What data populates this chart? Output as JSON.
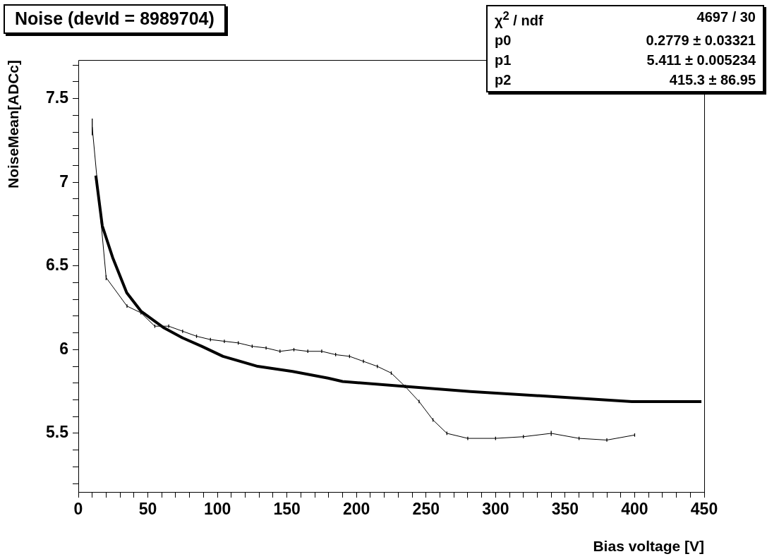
{
  "chart_data": {
    "type": "line",
    "title": "Noise (devId = 8989704)",
    "xlabel": "Bias voltage [V]",
    "ylabel": "NoiseMean[ADCc]",
    "xlim": [
      0,
      450
    ],
    "ylim": [
      5.15,
      7.73
    ],
    "xticks": [
      0,
      {
        "value": 10,
        "label": null
      },
      {
        "value": 20,
        "label": null
      },
      {
        "value": 30,
        "label": null
      },
      {
        "value": 40,
        "label": null
      },
      50,
      {
        "value": 60,
        "label": null
      },
      {
        "value": 70,
        "label": null
      },
      {
        "value": 80,
        "label": null
      },
      {
        "value": 90,
        "label": null
      },
      100,
      {
        "value": 110,
        "label": null
      },
      {
        "value": 120,
        "label": null
      },
      {
        "value": 130,
        "label": null
      },
      {
        "value": 140,
        "label": null
      },
      150,
      {
        "value": 160,
        "label": null
      },
      {
        "value": 170,
        "label": null
      },
      {
        "value": 180,
        "label": null
      },
      {
        "value": 190,
        "label": null
      },
      200,
      {
        "value": 210,
        "label": null
      },
      {
        "value": 220,
        "label": null
      },
      {
        "value": 230,
        "label": null
      },
      {
        "value": 240,
        "label": null
      },
      250,
      {
        "value": 260,
        "label": null
      },
      {
        "value": 270,
        "label": null
      },
      {
        "value": 280,
        "label": null
      },
      {
        "value": 290,
        "label": null
      },
      300,
      {
        "value": 310,
        "label": null
      },
      {
        "value": 320,
        "label": null
      },
      {
        "value": 330,
        "label": null
      },
      {
        "value": 340,
        "label": null
      },
      350,
      {
        "value": 360,
        "label": null
      },
      {
        "value": 370,
        "label": null
      },
      {
        "value": 380,
        "label": null
      },
      {
        "value": 390,
        "label": null
      },
      400,
      {
        "value": 410,
        "label": null
      },
      {
        "value": 420,
        "label": null
      },
      {
        "value": 430,
        "label": null
      },
      {
        "value": 440,
        "label": null
      },
      450
    ],
    "yticks": [
      {
        "value": 5.2,
        "label": null
      },
      {
        "value": 5.3,
        "label": null
      },
      {
        "value": 5.4,
        "label": null
      },
      5.5,
      {
        "value": 5.6,
        "label": null
      },
      {
        "value": 5.7,
        "label": null
      },
      {
        "value": 5.8,
        "label": null
      },
      {
        "value": 5.9,
        "label": null
      },
      6,
      {
        "value": 6.1,
        "label": null
      },
      {
        "value": 6.2,
        "label": null
      },
      {
        "value": 6.3,
        "label": null
      },
      {
        "value": 6.4,
        "label": null
      },
      6.5,
      {
        "value": 6.6,
        "label": null
      },
      {
        "value": 6.7,
        "label": null
      },
      {
        "value": 6.8,
        "label": null
      },
      {
        "value": 6.9,
        "label": null
      },
      7,
      {
        "value": 7.1,
        "label": null
      },
      {
        "value": 7.2,
        "label": null
      },
      {
        "value": 7.3,
        "label": null
      },
      {
        "value": 7.4,
        "label": null
      },
      7.5,
      {
        "value": 7.6,
        "label": null
      },
      {
        "value": 7.7,
        "label": null
      }
    ],
    "grid": false,
    "legend": false,
    "annotations": [
      "χ$^{2}$ / ndf",
      "4697 / 30",
      "p0",
      "0.2779 ± 0.03321",
      "p1",
      "5.411 ± 0.005234",
      "p2",
      "415.3 ± 86.95"
    ],
    "series": [
      {
        "color": "#000000",
        "x": [
          10,
          20,
          35,
          45,
          55,
          65,
          75,
          85,
          95,
          105,
          115,
          125,
          135,
          145,
          155,
          165,
          175,
          185,
          195,
          205,
          215,
          225,
          235,
          245,
          255,
          265,
          280,
          300,
          320,
          340,
          360,
          380,
          400
        ],
        "values": [
          7.33,
          6.43,
          6.26,
          6.22,
          6.14,
          6.14,
          6.11,
          6.08,
          6.06,
          6.05,
          6.04,
          6.02,
          6.01,
          5.99,
          6.0,
          5.99,
          5.99,
          5.97,
          5.96,
          5.93,
          5.9,
          5.86,
          5.78,
          5.69,
          5.58,
          5.5,
          5.47,
          5.47,
          5.48,
          5.5,
          5.47,
          5.46,
          5.49
        ],
        "errors": [
          0.05,
          0.015,
          0.01,
          0.01,
          0.01,
          0.01,
          0.01,
          0.01,
          0.01,
          0.01,
          0.01,
          0.01,
          0.01,
          0.01,
          0.01,
          0.01,
          0.01,
          0.01,
          0.01,
          0.01,
          0.01,
          0.01,
          0.01,
          0.01,
          0.01,
          0.01,
          0.01,
          0.01,
          0.01,
          0.015,
          0.01,
          0.01,
          0.01
        ]
      },
      {
        "color": "#000000",
        "x": [
          12.6,
          17.2,
          24.7,
          34.8,
          45,
          61.6,
          75,
          88.7,
          104,
          129,
          154,
          179.6,
          190,
          235,
          282,
          340,
          398,
          448
        ],
        "values": [
          7.04,
          6.74,
          6.55,
          6.34,
          6.23,
          6.13,
          6.07,
          6.02,
          5.96,
          5.9,
          5.87,
          5.83,
          5.81,
          5.78,
          5.75,
          5.72,
          5.69,
          5.69
        ]
      }
    ]
  }
}
